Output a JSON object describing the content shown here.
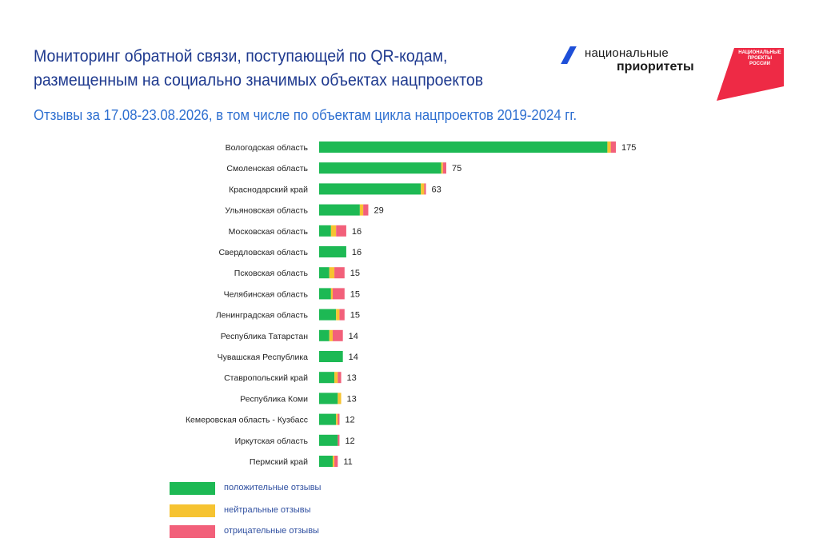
{
  "header": {
    "title": "Мониторинг обратной связи, поступающей по QR-кодам, размещенным на социально значимых объектах нацпроектов",
    "subtitle": "Отзывы за 17.08-23.08.2026, в  том числе по объектам цикла нацпроектов 2019-2024 гг."
  },
  "logos": {
    "national_priorities": {
      "line1": "национальные",
      "line2": "приоритеты"
    },
    "national_projects": "НАЦИОНАЛЬНЫЕ ПРОЕКТЫ РОССИИ"
  },
  "colors": {
    "positive": "#1db954",
    "neutral": "#f6c331",
    "negative": "#f2607a",
    "title": "#1f3a8f",
    "subtitle": "#2e6fd0"
  },
  "chart_data": {
    "type": "bar",
    "orientation": "horizontal",
    "stacked": true,
    "categories": [
      "Вологодская область",
      "Смоленская область",
      "Краснодарский край",
      "Ульяновская область",
      "Московская область",
      "Свердловская область",
      "Псковская область",
      "Челябинская область",
      "Ленинградская область",
      "Республика Татарстан",
      "Чувашская Республика",
      "Ставропольский край",
      "Республика Коми",
      "Кемеровская область - Кузбасс",
      "Иркутская область",
      "Пермский край"
    ],
    "totals": [
      175,
      75,
      63,
      29,
      16,
      16,
      15,
      15,
      15,
      14,
      14,
      13,
      13,
      12,
      12,
      11
    ],
    "series": [
      {
        "name": "положительные отзывы",
        "values": [
          170,
          72,
          60,
          24,
          7,
          16,
          6,
          7,
          10,
          6,
          14,
          9,
          11,
          10,
          11,
          8
        ]
      },
      {
        "name": "нейтральные отзывы",
        "values": [
          2,
          1,
          2,
          2,
          3,
          0,
          3,
          1,
          2,
          2,
          0,
          2,
          2,
          1,
          0,
          1
        ]
      },
      {
        "name": "отрицательные отзывы",
        "values": [
          3,
          2,
          1,
          3,
          6,
          0,
          6,
          7,
          3,
          6,
          0,
          2,
          0,
          1,
          1,
          2
        ]
      }
    ],
    "legend_position": "bottom-left",
    "grid": false
  }
}
